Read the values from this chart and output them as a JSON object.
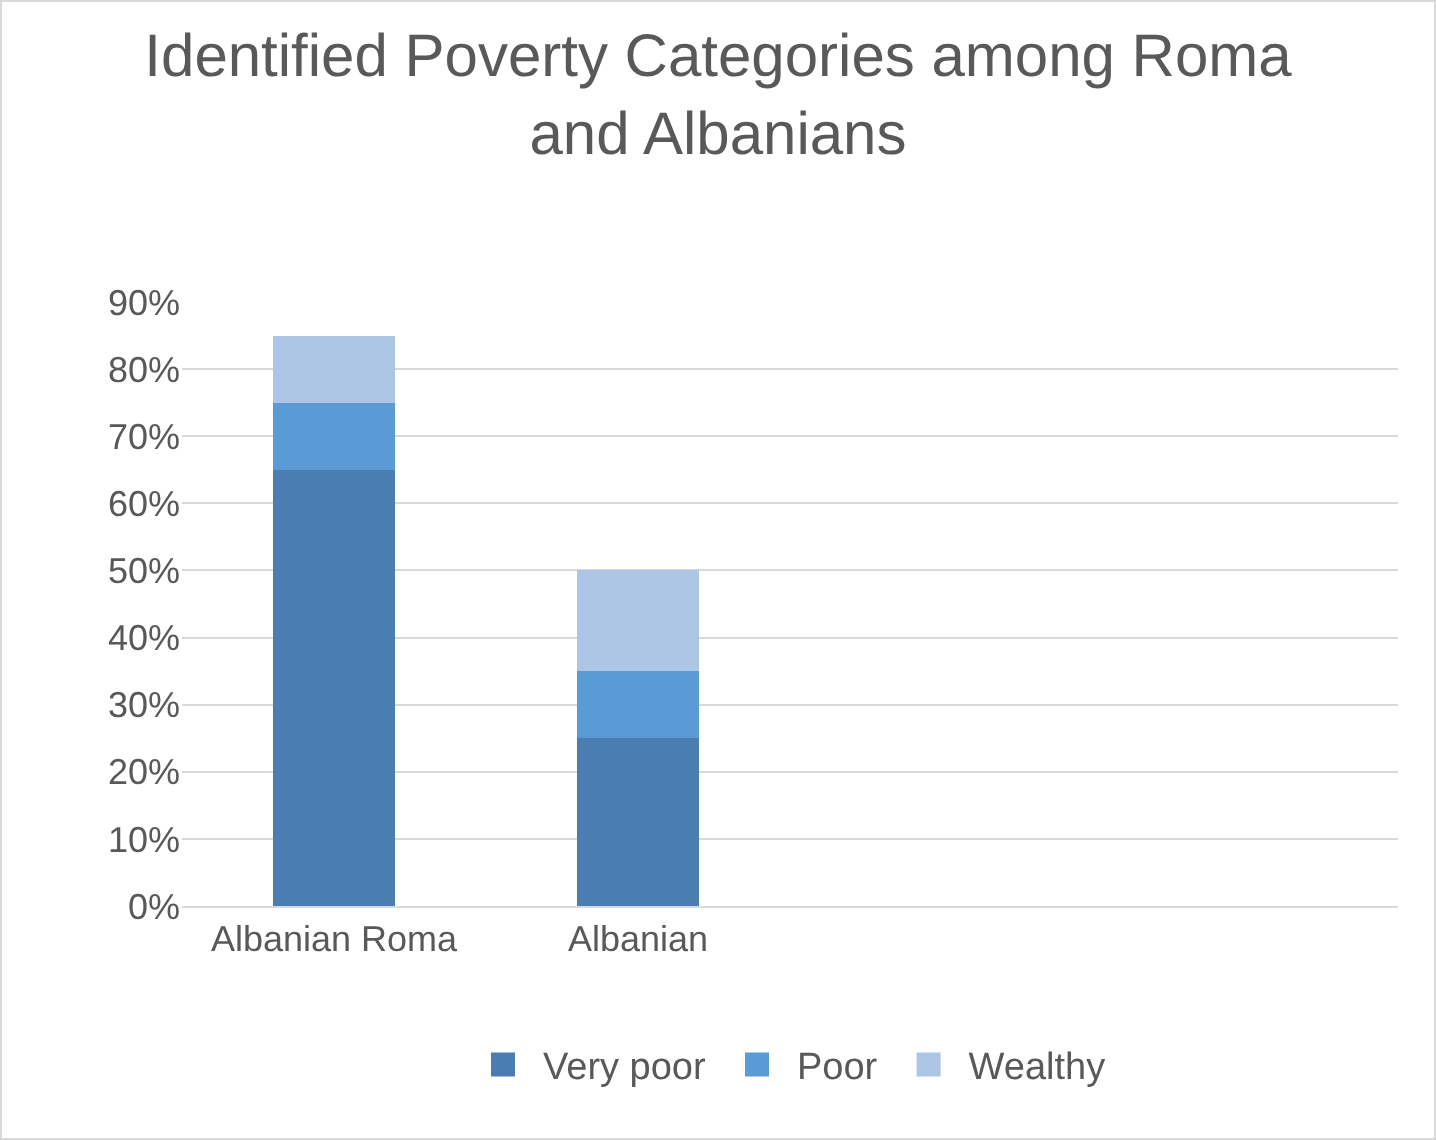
{
  "chart_data": {
    "type": "bar",
    "title": "Identified Poverty Categories among Roma and Albanians",
    "stacked": true,
    "categories": [
      "Albanian Roma",
      "Albanian",
      null,
      null
    ],
    "series": [
      {
        "name": "Very poor",
        "color": "#4a7eb2",
        "values": [
          65,
          25,
          null,
          null
        ]
      },
      {
        "name": "Poor",
        "color": "#5b9bd5",
        "values": [
          10,
          10,
          null,
          null
        ]
      },
      {
        "name": "Wealthy",
        "color": "#adc6e5",
        "values": [
          10,
          15,
          null,
          null
        ]
      }
    ],
    "ylim": [
      0,
      90
    ],
    "yticks": [
      {
        "value": 0,
        "label": "0%"
      },
      {
        "value": 10,
        "label": "10%"
      },
      {
        "value": 20,
        "label": "20%"
      },
      {
        "value": 30,
        "label": "30%"
      },
      {
        "value": 40,
        "label": "40%"
      },
      {
        "value": 50,
        "label": "50%"
      },
      {
        "value": 60,
        "label": "60%"
      },
      {
        "value": 70,
        "label": "70%"
      },
      {
        "value": 80,
        "label": "80%"
      },
      {
        "value": 90,
        "label": "90%"
      }
    ],
    "grid": "y",
    "legend": "bottom"
  }
}
